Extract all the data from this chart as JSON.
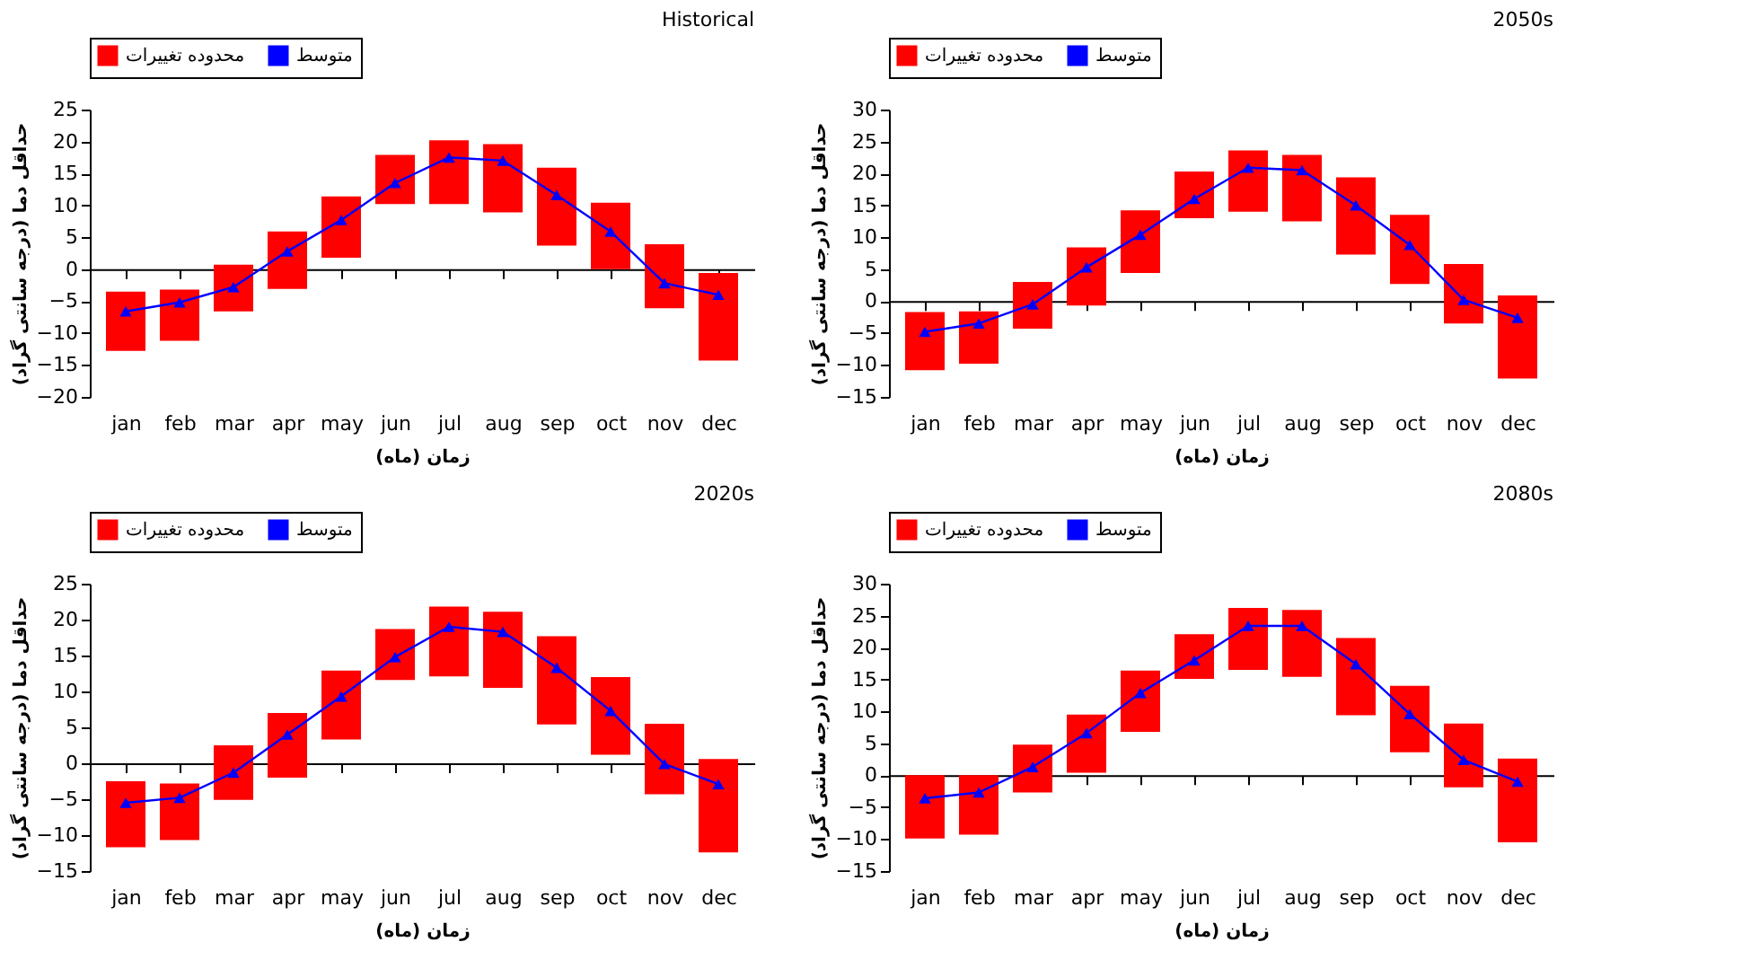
{
  "chart_data": [
    {
      "type": "bar",
      "title": "Historical",
      "xlabel": "زمان (ماه)",
      "ylabel": "حداقل دما (درجه سانتی گراد)",
      "categories": [
        "jan",
        "feb",
        "mar",
        "apr",
        "may",
        "jun",
        "jul",
        "aug",
        "sep",
        "oct",
        "nov",
        "dec"
      ],
      "ylim": [
        -20,
        25
      ],
      "yticks": [
        -20,
        -15,
        -10,
        -5,
        0,
        5,
        10,
        15,
        20,
        25
      ],
      "legend": "top",
      "marker": "triangle",
      "line_style": "solid",
      "series": [
        {
          "type": "bar",
          "name": "محدوده تغییرات",
          "color": "#ff0000",
          "base": [
            -12.8,
            -11.2,
            -6.6,
            -3.1,
            1.8,
            10.2,
            10.2,
            8.9,
            3.7,
            0,
            -6.1,
            -14.3
          ],
          "values": [
            9.3,
            8.0,
            7.3,
            9.0,
            9.6,
            7.7,
            10.0,
            10.7,
            12.2,
            10.4,
            10.0,
            13.7
          ]
        },
        {
          "type": "line",
          "name": "متوسط",
          "color": "#0000ff",
          "values": [
            -6.6,
            -5.2,
            -2.8,
            2.8,
            7.7,
            13.5,
            17.5,
            17.0,
            11.6,
            5.9,
            -2.2,
            -4.0
          ]
        }
      ]
    },
    {
      "type": "bar",
      "title": "2050s",
      "xlabel": "زمان (ماه)",
      "ylabel": "حداقل دما (درجه سانتی گراد)",
      "categories": [
        "jan",
        "feb",
        "mar",
        "apr",
        "may",
        "jun",
        "jul",
        "aug",
        "sep",
        "oct",
        "nov",
        "dec"
      ],
      "ylim": [
        -15,
        30
      ],
      "yticks": [
        -15,
        -10,
        -5,
        0,
        5,
        10,
        15,
        20,
        25,
        30
      ],
      "legend": "top",
      "marker": "triangle",
      "line_style": "solid",
      "series": [
        {
          "type": "bar",
          "name": "محدوده تغییرات",
          "color": "#ff0000",
          "base": [
            -10.8,
            -9.8,
            -4.3,
            -0.7,
            4.4,
            13.0,
            14.0,
            12.5,
            7.3,
            2.7,
            -3.5,
            -12.1
          ],
          "values": [
            9.1,
            8.2,
            7.3,
            9.1,
            9.8,
            7.3,
            9.6,
            10.4,
            12.1,
            10.8,
            9.3,
            13.0
          ]
        },
        {
          "type": "line",
          "name": "متوسط",
          "color": "#0000ff",
          "values": [
            -4.8,
            -3.5,
            -0.5,
            5.3,
            10.4,
            16.0,
            20.9,
            20.5,
            15.0,
            8.8,
            0.2,
            -2.6
          ]
        }
      ]
    },
    {
      "type": "bar",
      "title": "2020s",
      "xlabel": "زمان (ماه)",
      "ylabel": "حداقل دما (درجه سانتی گراد)",
      "categories": [
        "jan",
        "feb",
        "mar",
        "apr",
        "may",
        "jun",
        "jul",
        "aug",
        "sep",
        "oct",
        "nov",
        "dec"
      ],
      "ylim": [
        -15,
        25
      ],
      "yticks": [
        -15,
        -10,
        -5,
        0,
        5,
        10,
        15,
        20,
        25
      ],
      "legend": "top",
      "marker": "triangle",
      "line_style": "solid",
      "series": [
        {
          "type": "bar",
          "name": "محدوده تغییرات",
          "color": "#ff0000",
          "base": [
            -11.7,
            -10.7,
            -5.1,
            -2.0,
            3.3,
            11.6,
            12.1,
            10.5,
            5.4,
            1.2,
            -4.3,
            -12.4
          ],
          "values": [
            9.2,
            7.9,
            7.6,
            9.0,
            9.6,
            7.1,
            9.7,
            10.6,
            12.3,
            10.8,
            9.8,
            13.0
          ]
        },
        {
          "type": "line",
          "name": "متوسط",
          "color": "#0000ff",
          "values": [
            -5.5,
            -4.8,
            -1.3,
            4.0,
            9.3,
            14.8,
            19.0,
            18.3,
            13.3,
            7.3,
            -0.1,
            -2.9
          ]
        }
      ]
    },
    {
      "type": "bar",
      "title": "2080s",
      "xlabel": "زمان (ماه)",
      "ylabel": "حداقل دما (درجه سانتی گراد)",
      "categories": [
        "jan",
        "feb",
        "mar",
        "apr",
        "may",
        "jun",
        "jul",
        "aug",
        "sep",
        "oct",
        "nov",
        "dec"
      ],
      "ylim": [
        -15,
        30
      ],
      "yticks": [
        -15,
        -10,
        -5,
        0,
        5,
        10,
        15,
        20,
        25,
        30
      ],
      "legend": "top",
      "marker": "triangle",
      "line_style": "solid",
      "series": [
        {
          "type": "bar",
          "name": "محدوده تغییرات",
          "color": "#ff0000",
          "base": [
            -9.9,
            -9.3,
            -2.7,
            0.4,
            6.8,
            15.1,
            16.5,
            15.4,
            9.4,
            3.6,
            -1.9,
            -10.5
          ],
          "values": [
            9.9,
            9.3,
            7.5,
            9.1,
            9.6,
            7.0,
            9.7,
            10.5,
            12.1,
            10.4,
            10.0,
            13.1
          ]
        },
        {
          "type": "line",
          "name": "متوسط",
          "color": "#0000ff",
          "values": [
            -3.6,
            -2.7,
            1.3,
            6.6,
            12.9,
            18.0,
            23.4,
            23.4,
            17.4,
            9.6,
            2.4,
            -1.0
          ]
        }
      ]
    }
  ]
}
